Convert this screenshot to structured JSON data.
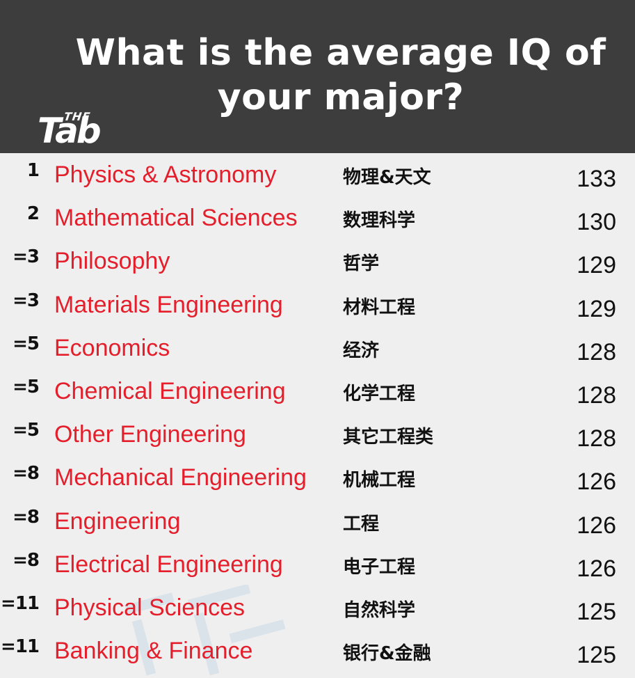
{
  "header": {
    "title_line1": "What is the average IQ of",
    "title_line2": "your major?",
    "logo_the": "THE",
    "logo_tab": "Tab"
  },
  "watermark": {
    "icon": "watermark-glyph"
  },
  "colors": {
    "header_bg": "#3d3d3d",
    "body_bg": "#efefef",
    "major_text": "#e41e2b",
    "text": "#111111"
  },
  "chart_data": {
    "type": "table",
    "title": "What is the average IQ of your major?",
    "columns": [
      "rank",
      "major",
      "chinese",
      "iq"
    ],
    "rows": [
      {
        "rank": "1",
        "major": "Physics & Astronomy",
        "chinese": "物理&天文",
        "iq": 133
      },
      {
        "rank": "2",
        "major": "Mathematical Sciences",
        "chinese": "数理科学",
        "iq": 130
      },
      {
        "rank": "=3",
        "major": "Philosophy",
        "chinese": "哲学",
        "iq": 129
      },
      {
        "rank": "=3",
        "major": "Materials Engineering",
        "chinese": "材料工程",
        "iq": 129
      },
      {
        "rank": "=5",
        "major": "Economics",
        "chinese": "经济",
        "iq": 128
      },
      {
        "rank": "=5",
        "major": "Chemical Engineering",
        "chinese": "化学工程",
        "iq": 128
      },
      {
        "rank": "=5",
        "major": "Other Engineering",
        "chinese": "其它工程类",
        "iq": 128
      },
      {
        "rank": "=8",
        "major": "Mechanical Engineering",
        "chinese": "机械工程",
        "iq": 126
      },
      {
        "rank": "=8",
        "major": "Engineering",
        "chinese": "工程",
        "iq": 126
      },
      {
        "rank": "=8",
        "major": "Electrical Engineering",
        "chinese": "电子工程",
        "iq": 126
      },
      {
        "rank": "=11",
        "major": "Physical Sciences",
        "chinese": "自然科学",
        "iq": 125
      },
      {
        "rank": "=11",
        "major": "Banking & Finance",
        "chinese": "银行&金融",
        "iq": 125
      }
    ]
  }
}
